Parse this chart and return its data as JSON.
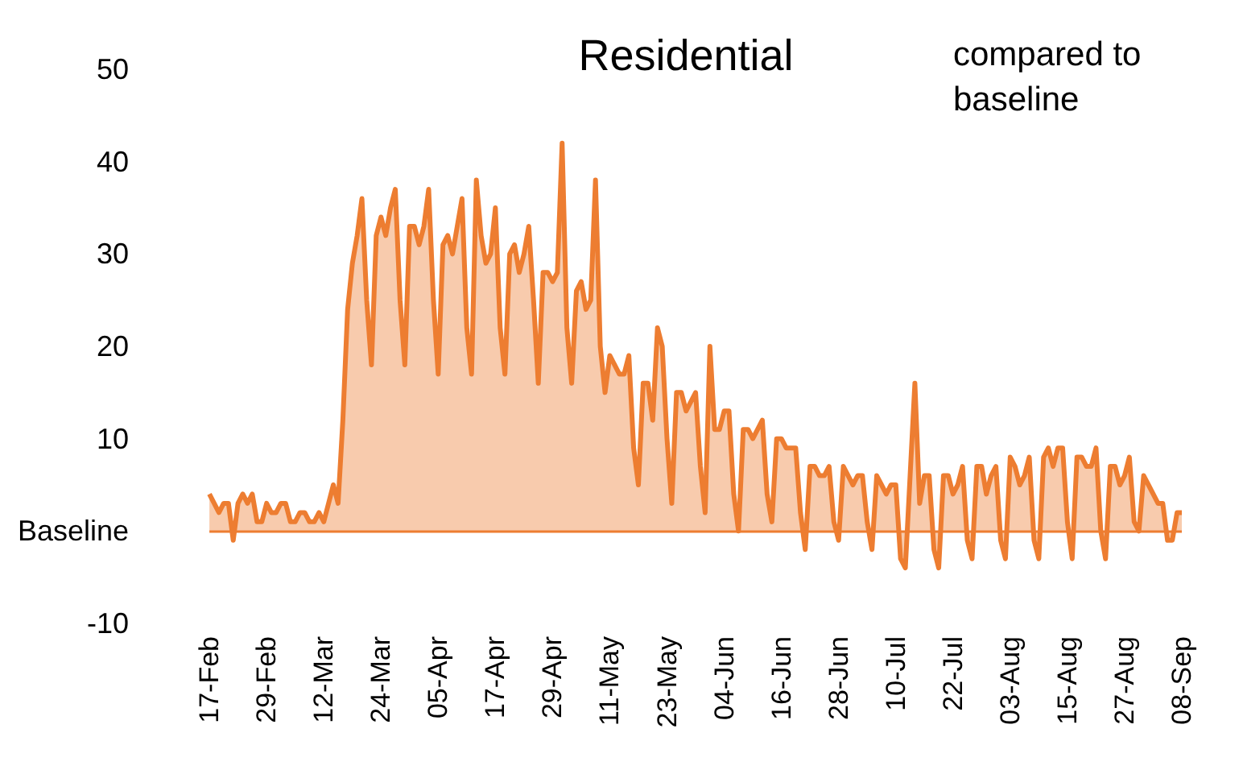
{
  "chart_data": {
    "type": "area",
    "title": "Residential",
    "annotations": [
      "compared to baseline"
    ],
    "categories": [
      "17-Feb",
      null,
      null,
      null,
      null,
      null,
      null,
      null,
      null,
      null,
      null,
      null,
      "29-Feb",
      null,
      null,
      null,
      null,
      null,
      null,
      null,
      null,
      null,
      null,
      null,
      "12-Mar",
      null,
      null,
      null,
      null,
      null,
      null,
      null,
      null,
      null,
      null,
      null,
      "24-Mar",
      null,
      null,
      null,
      null,
      null,
      null,
      null,
      null,
      null,
      null,
      null,
      "05-Apr",
      null,
      null,
      null,
      null,
      null,
      null,
      null,
      null,
      null,
      null,
      null,
      "17-Apr",
      null,
      null,
      null,
      null,
      null,
      null,
      null,
      null,
      null,
      null,
      null,
      "29-Apr",
      null,
      null,
      null,
      null,
      null,
      null,
      null,
      null,
      null,
      null,
      null,
      "11-May",
      null,
      null,
      null,
      null,
      null,
      null,
      null,
      null,
      null,
      null,
      null,
      "23-May",
      null,
      null,
      null,
      null,
      null,
      null,
      null,
      null,
      null,
      null,
      null,
      "04-Jun",
      null,
      null,
      null,
      null,
      null,
      null,
      null,
      null,
      null,
      null,
      null,
      "16-Jun",
      null,
      null,
      null,
      null,
      null,
      null,
      null,
      null,
      null,
      null,
      null,
      "28-Jun",
      null,
      null,
      null,
      null,
      null,
      null,
      null,
      null,
      null,
      null,
      null,
      "10-Jul",
      null,
      null,
      null,
      null,
      null,
      null,
      null,
      null,
      null,
      null,
      null,
      "22-Jul",
      null,
      null,
      null,
      null,
      null,
      null,
      null,
      null,
      null,
      null,
      null,
      "03-Aug",
      null,
      null,
      null,
      null,
      null,
      null,
      null,
      null,
      null,
      null,
      null,
      "15-Aug",
      null,
      null,
      null,
      null,
      null,
      null,
      null,
      null,
      null,
      null,
      null,
      "27-Aug",
      null,
      null,
      null,
      null,
      null,
      null,
      null,
      null,
      null,
      null,
      null,
      "08-Sep"
    ],
    "series": [
      {
        "color": "#ed7d31",
        "values": [
          4,
          3,
          2,
          3,
          3,
          -1,
          3,
          4,
          3,
          4,
          1,
          1,
          3,
          2,
          2,
          3,
          3,
          1,
          1,
          2,
          2,
          1,
          1,
          2,
          1,
          3,
          5,
          3,
          12,
          24,
          29,
          32,
          36,
          25,
          18,
          32,
          34,
          32,
          35,
          37,
          25,
          18,
          33,
          33,
          31,
          33,
          37,
          25,
          17,
          31,
          32,
          30,
          33,
          36,
          22,
          17,
          38,
          32,
          29,
          30,
          35,
          22,
          17,
          30,
          31,
          28,
          30,
          33,
          25,
          16,
          28,
          28,
          27,
          28,
          42,
          22,
          16,
          26,
          27,
          24,
          25,
          38,
          20,
          15,
          19,
          18,
          17,
          17,
          19,
          9,
          5,
          16,
          16,
          12,
          22,
          20,
          10,
          3,
          15,
          15,
          13,
          14,
          15,
          7,
          2,
          20,
          11,
          11,
          13,
          13,
          4,
          0,
          11,
          11,
          10,
          11,
          12,
          4,
          1,
          10,
          10,
          9,
          9,
          9,
          2,
          -2,
          7,
          7,
          6,
          6,
          7,
          1,
          -1,
          7,
          6,
          5,
          6,
          6,
          1,
          -2,
          6,
          5,
          4,
          5,
          5,
          -3,
          -4,
          6,
          16,
          3,
          6,
          6,
          -2,
          -4,
          6,
          6,
          4,
          5,
          7,
          -1,
          -3,
          7,
          7,
          4,
          6,
          7,
          -1,
          -3,
          8,
          7,
          5,
          6,
          8,
          -1,
          -3,
          8,
          9,
          7,
          9,
          9,
          1,
          -3,
          8,
          8,
          7,
          7,
          9,
          0,
          -3,
          7,
          7,
          5,
          6,
          8,
          1,
          0,
          6,
          5,
          4,
          3,
          3,
          -1,
          -1,
          2,
          2
        ]
      }
    ],
    "ylim": [
      -10,
      50
    ],
    "yticks": [
      -10,
      {
        "value": 0,
        "label": "Baseline"
      },
      10,
      20,
      30,
      40,
      50
    ],
    "ref_lines": [
      {
        "axis": "y",
        "value": 0,
        "color": "#ed7d31"
      }
    ],
    "grid": false,
    "marker": "none",
    "line_style": "solid"
  }
}
